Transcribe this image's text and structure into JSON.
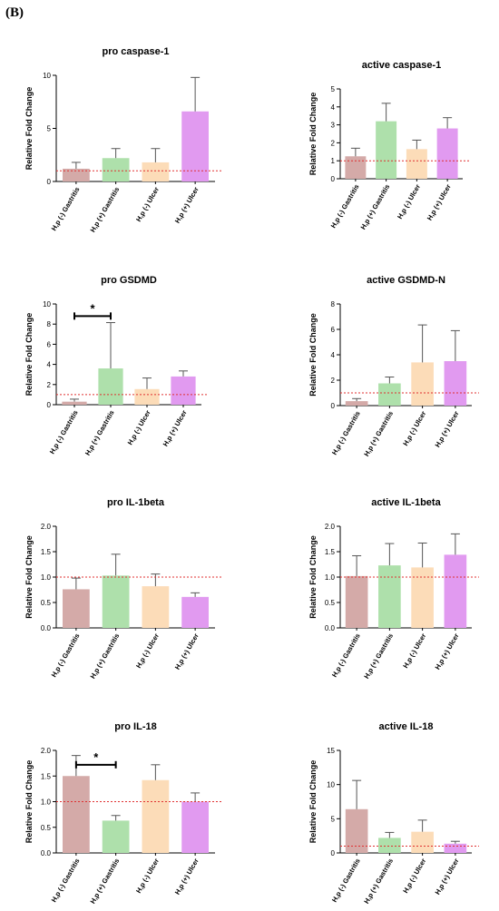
{
  "panel_label": "(B)",
  "colors": {
    "H,p (-) Gastritis": "#d4aaa8",
    "H,p (+) Gastritis": "#aee0ab",
    "H,p (-) Ulcer": "#fcdcb8",
    "H,p (+) Ulcer": "#e19af0",
    "reference_line": "#e03030"
  },
  "chart_data": [
    {
      "type": "bar",
      "title": "pro caspase-1",
      "ylabel": "Relative Fold Change",
      "categories": [
        "H,p (-) Gastritis",
        "H,p (+) Gastritis",
        "H,p (-) Ulcer",
        "H,p (+) Ulcer"
      ],
      "values": [
        1.2,
        2.2,
        1.8,
        6.6
      ],
      "errors": [
        0.6,
        0.9,
        1.3,
        3.2
      ],
      "ylim": [
        0,
        10
      ],
      "yticks": [
        "0",
        "5",
        "10"
      ],
      "ytick_values": [
        0,
        5,
        10
      ],
      "reference_line": 1.0,
      "significance": null
    },
    {
      "type": "bar",
      "title": "active caspase-1",
      "ylabel": "Relative Fold Change",
      "categories": [
        "H,p (-) Gastritis",
        "H,p (+) Gastritis",
        "H,p (-) Ulcer",
        "H,p (+) Ulcer"
      ],
      "values": [
        1.25,
        3.2,
        1.65,
        2.8
      ],
      "errors": [
        0.45,
        1.0,
        0.5,
        0.6
      ],
      "ylim": [
        0,
        5
      ],
      "yticks": [
        "0",
        "1",
        "2",
        "3",
        "4",
        "5"
      ],
      "ytick_values": [
        0,
        1,
        2,
        3,
        4,
        5
      ],
      "reference_line": 1.0,
      "significance": null
    },
    {
      "type": "bar",
      "title": "pro GSDMD",
      "ylabel": "Relative Fold Change",
      "categories": [
        "H,p (-) Gastritis",
        "H,p (+) Gastritis",
        "H,p (-) Ulcer",
        "H,p (+) Ulcer"
      ],
      "values": [
        0.3,
        3.6,
        1.55,
        2.8
      ],
      "errors": [
        0.25,
        4.55,
        1.1,
        0.55
      ],
      "ylim": [
        0,
        10
      ],
      "yticks": [
        "0",
        "2",
        "4",
        "6",
        "8",
        "10"
      ],
      "ytick_values": [
        0,
        2,
        4,
        6,
        8,
        10
      ],
      "reference_line": 1.0,
      "significance": {
        "from": 0,
        "to": 1,
        "label": "*",
        "y": 8.8
      }
    },
    {
      "type": "bar",
      "title": "active GSDMD-N",
      "ylabel": "Relative Fold Change",
      "categories": [
        "H,p (-) Gastritis",
        "H,p (+) Gastritis",
        "H,p (-) Ulcer",
        "H,p (+) Ulcer"
      ],
      "values": [
        0.35,
        1.75,
        3.4,
        3.5
      ],
      "errors": [
        0.2,
        0.5,
        2.95,
        2.4
      ],
      "ylim": [
        0,
        8
      ],
      "yticks": [
        "0",
        "2",
        "4",
        "6",
        "8"
      ],
      "ytick_values": [
        0,
        2,
        4,
        6,
        8
      ],
      "reference_line": 1.0,
      "significance": null
    },
    {
      "type": "bar",
      "title": "pro IL-1beta",
      "ylabel": "Relative Fold Change",
      "categories": [
        "H,p (-) Gastritis",
        "H,p (+) Gastritis",
        "H,p (-) Ulcer",
        "H,p (+) Ulcer"
      ],
      "values": [
        0.76,
        1.03,
        0.82,
        0.61
      ],
      "errors": [
        0.22,
        0.42,
        0.24,
        0.08
      ],
      "ylim": [
        0,
        2.0
      ],
      "yticks": [
        "0.0",
        "0.5",
        "1.0",
        "1.5",
        "2.0"
      ],
      "ytick_values": [
        0,
        0.5,
        1.0,
        1.5,
        2.0
      ],
      "reference_line": 1.0,
      "significance": null
    },
    {
      "type": "bar",
      "title": "active IL-1beta",
      "ylabel": "Relative Fold Change",
      "categories": [
        "H,p (-) Gastritis",
        "H,p (+) Gastritis",
        "H,p (-) Ulcer",
        "H,p (+) Ulcer"
      ],
      "values": [
        1.02,
        1.23,
        1.19,
        1.44
      ],
      "errors": [
        0.4,
        0.43,
        0.48,
        0.41
      ],
      "ylim": [
        0,
        2.0
      ],
      "yticks": [
        "0.0",
        "0.5",
        "1.0",
        "1.5",
        "2.0"
      ],
      "ytick_values": [
        0,
        0.5,
        1.0,
        1.5,
        2.0
      ],
      "reference_line": 1.0,
      "significance": null
    },
    {
      "type": "bar",
      "title": "pro IL-18",
      "ylabel": "Relative Fold Change",
      "categories": [
        "H,p (-) Gastritis",
        "H,p (+) Gastritis",
        "H,p (-) Ulcer",
        "H,p (+) Ulcer"
      ],
      "values": [
        1.5,
        0.63,
        1.42,
        1.0
      ],
      "errors": [
        0.4,
        0.1,
        0.3,
        0.17
      ],
      "ylim": [
        0,
        2.0
      ],
      "yticks": [
        "0.0",
        "0.5",
        "1.0",
        "1.5",
        "2.0"
      ],
      "ytick_values": [
        0,
        0.5,
        1.0,
        1.5,
        2.0
      ],
      "reference_line": 1.0,
      "significance": {
        "from": 0,
        "to": 1,
        "label": "*",
        "y": 1.72
      }
    },
    {
      "type": "bar",
      "title": "active IL-18",
      "ylabel": "Relative Fold Change",
      "categories": [
        "H,p (-) Gastritis",
        "H,p (+) Gastritis",
        "H,p (-) Ulcer",
        "H,p (+) Ulcer"
      ],
      "values": [
        6.4,
        2.2,
        3.1,
        1.35
      ],
      "errors": [
        4.2,
        0.8,
        1.7,
        0.35
      ],
      "ylim": [
        0,
        15
      ],
      "yticks": [
        "0",
        "5",
        "10",
        "15"
      ],
      "ytick_values": [
        0,
        5,
        10,
        15
      ],
      "reference_line": 1.0,
      "significance": null
    }
  ]
}
